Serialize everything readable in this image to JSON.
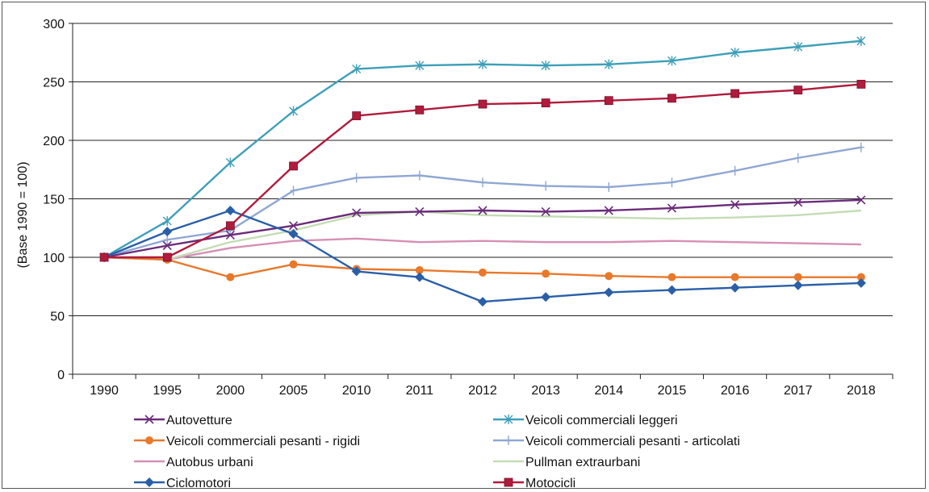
{
  "chart_data": {
    "type": "line",
    "title": "",
    "xlabel": "",
    "ylabel": "(Base 1990 = 100)",
    "categories": [
      "1990",
      "1995",
      "2000",
      "2005",
      "2010",
      "2011",
      "2012",
      "2013",
      "2014",
      "2015",
      "2016",
      "2017",
      "2018"
    ],
    "ylim": [
      0,
      300
    ],
    "yticks": [
      0,
      50,
      100,
      150,
      200,
      250,
      300
    ],
    "grid": true,
    "legend_position": "bottom",
    "series": [
      {
        "name": "Autovetture",
        "color": "#6a2c7a",
        "marker": "x-star",
        "values": [
          100,
          110,
          119,
          127,
          138,
          139,
          140,
          139,
          140,
          142,
          145,
          147,
          149
        ]
      },
      {
        "name": "Veicoli commerciali leggeri",
        "color": "#3d9fb8",
        "marker": "asterisk",
        "values": [
          100,
          131,
          181,
          225,
          261,
          264,
          265,
          264,
          265,
          268,
          275,
          280,
          285
        ]
      },
      {
        "name": "Veicoli commerciali pesanti - rigidi",
        "color": "#e8782a",
        "marker": "circle",
        "values": [
          100,
          98,
          83,
          94,
          90,
          89,
          87,
          86,
          84,
          83,
          83,
          83,
          83
        ]
      },
      {
        "name": "Veicoli commerciali pesanti - articolati",
        "color": "#8fa6d4",
        "marker": "plus",
        "values": [
          100,
          115,
          123,
          157,
          168,
          170,
          164,
          161,
          160,
          164,
          174,
          185,
          194
        ]
      },
      {
        "name": "Autobus urbani",
        "color": "#d68fb4",
        "marker": "none",
        "values": [
          100,
          98,
          108,
          114,
          116,
          113,
          114,
          113,
          113,
          114,
          113,
          112,
          111
        ]
      },
      {
        "name": "Pullman extraurbani",
        "color": "#c4dcb4",
        "marker": "none",
        "values": [
          100,
          98,
          113,
          123,
          136,
          139,
          136,
          135,
          134,
          133,
          134,
          136,
          140
        ]
      },
      {
        "name": "Ciclomotori",
        "color": "#2a5fa8",
        "marker": "diamond",
        "values": [
          100,
          122,
          140,
          120,
          88,
          83,
          62,
          66,
          70,
          72,
          74,
          76,
          78
        ]
      },
      {
        "name": "Motocicli",
        "color": "#b01c3c",
        "marker": "square",
        "values": [
          100,
          100,
          127,
          178,
          221,
          226,
          231,
          232,
          234,
          236,
          240,
          243,
          248
        ]
      }
    ]
  }
}
